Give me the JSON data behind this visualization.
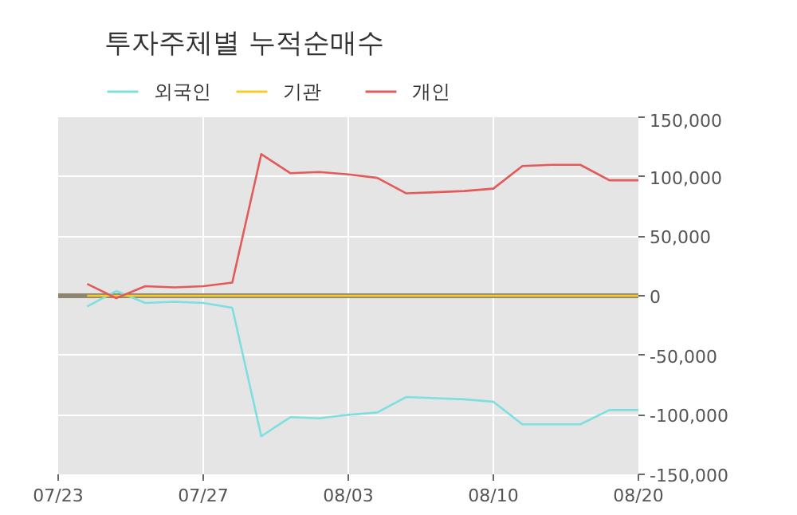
{
  "chart_data": {
    "type": "line",
    "title": "투자주체별 누적순매수",
    "categories": [
      "07/23",
      null,
      null,
      null,
      null,
      "07/27",
      null,
      null,
      null,
      null,
      "08/03",
      null,
      null,
      null,
      null,
      "08/10",
      null,
      null,
      null,
      null,
      "08/20"
    ],
    "series": [
      {
        "name": "외국인",
        "color": "#7edfe0",
        "values": [
          null,
          -9000,
          4000,
          -6000,
          -5000,
          -6000,
          -10000,
          -118000,
          -102000,
          -103000,
          -100000,
          -98000,
          -85000,
          -86000,
          -87000,
          -89000,
          -108000,
          -108000,
          -108000,
          -96000,
          -96000
        ]
      },
      {
        "name": "기관",
        "color": "#f5cc2a",
        "values": [
          null,
          0,
          0,
          0,
          0,
          0,
          0,
          0,
          0,
          0,
          0,
          0,
          0,
          0,
          0,
          0,
          0,
          0,
          0,
          0,
          0
        ]
      },
      {
        "name": "개인",
        "color": "#e35a5a",
        "values": [
          null,
          10000,
          -2000,
          8000,
          7000,
          8000,
          11000,
          119000,
          103000,
          104000,
          102000,
          99000,
          86000,
          87000,
          88000,
          90000,
          109000,
          110000,
          110000,
          97000,
          97000
        ]
      }
    ],
    "ylim": [
      -150000,
      150000
    ],
    "yticks": [
      {
        "value": -150000,
        "label": "-150,000"
      },
      {
        "value": -100000,
        "label": "-100,000"
      },
      {
        "value": -50000,
        "label": "-50,000"
      },
      {
        "value": 0,
        "label": "0"
      },
      {
        "value": 50000,
        "label": "50,000"
      },
      {
        "value": 100000,
        "label": "100,000"
      },
      {
        "value": 150000,
        "label": "150,000"
      }
    ],
    "ref_lines": [
      {
        "axis": "y",
        "value": 0,
        "color": "#8c8570"
      }
    ],
    "grid": true,
    "legend": "top left",
    "marker": "none",
    "line_style": "solid"
  }
}
